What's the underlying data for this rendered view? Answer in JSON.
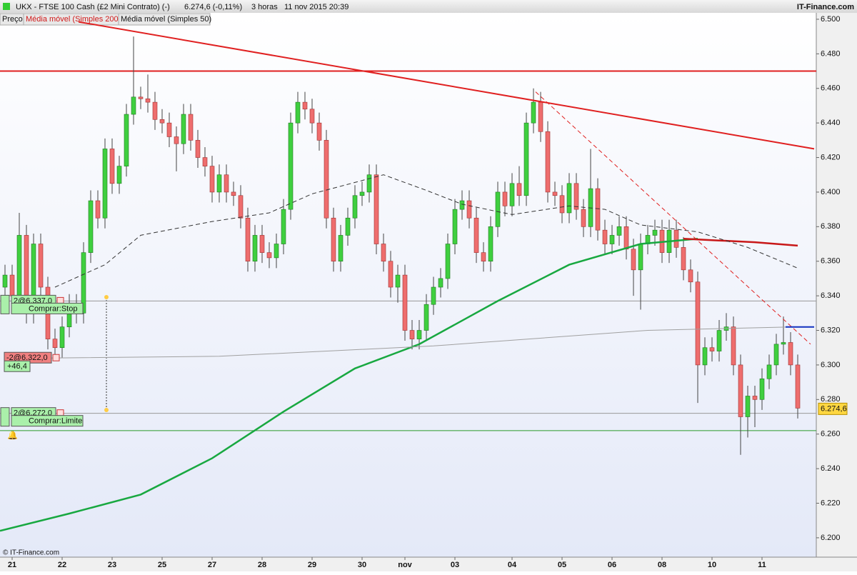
{
  "header": {
    "title": "UKX - FTSE 100 Cash (£2 Mini Contrato) (-)",
    "quote": "6.274,6 (-0,11%)",
    "period": "3 horas",
    "datetime": "11 nov 2015 20:39",
    "brand": "IT-Finance.com",
    "tabs": [
      "Preço",
      "Média móvel (Simples 200)",
      "Média móvel (Simples 50)"
    ],
    "copyright": "© IT-Finance.com"
  },
  "chart_data": {
    "type": "candlestick",
    "categories": [
      null,
      "21",
      null,
      null,
      null,
      null,
      null,
      null,
      "22",
      null,
      null,
      null,
      null,
      null,
      null,
      "23",
      null,
      null,
      null,
      null,
      null,
      null,
      "25",
      null,
      null,
      null,
      null,
      null,
      null,
      "27",
      null,
      null,
      null,
      null,
      null,
      null,
      "28",
      null,
      null,
      null,
      null,
      null,
      null,
      "29",
      null,
      null,
      null,
      null,
      null,
      null,
      "30",
      null,
      null,
      null,
      null,
      null,
      "nov",
      null,
      null,
      null,
      null,
      null,
      null,
      "03",
      null,
      null,
      null,
      null,
      null,
      null,
      null,
      "04",
      null,
      null,
      null,
      null,
      null,
      null,
      "05",
      null,
      null,
      null,
      null,
      null,
      null,
      "06",
      null,
      null,
      null,
      null,
      null,
      null,
      "08",
      null,
      null,
      null,
      null,
      null,
      null,
      "10",
      null,
      null,
      null,
      null,
      null,
      null,
      "11",
      null,
      null,
      null,
      null,
      null
    ],
    "open": [
      6.345,
      6.352,
      6.34,
      6.375,
      6.33,
      6.37,
      6.345,
      6.315,
      6.31,
      6.322,
      6.335,
      6.33,
      6.365,
      6.395,
      6.385,
      6.425,
      6.405,
      6.415,
      6.445,
      6.455,
      6.454,
      6.452,
      6.442,
      6.44,
      6.432,
      6.428,
      6.445,
      6.43,
      6.42,
      6.415,
      6.4,
      6.41,
      6.4,
      6.398,
      6.385,
      6.36,
      6.375,
      6.365,
      6.362,
      6.37,
      6.39,
      6.44,
      6.452,
      6.448,
      6.44,
      6.43,
      6.385,
      6.36,
      6.375,
      6.385,
      6.398,
      6.4,
      6.41,
      6.37,
      6.36,
      6.345,
      6.352,
      6.32,
      6.315,
      6.32,
      6.335,
      6.345,
      6.35,
      6.37,
      6.39,
      6.395,
      6.385,
      6.365,
      6.36,
      6.38,
      6.4,
      6.392,
      6.405,
      6.398,
      6.44,
      6.452,
      6.435,
      6.4,
      6.398,
      6.388,
      6.405,
      6.39,
      6.38,
      6.402,
      6.378,
      6.37,
      6.375,
      6.38,
      6.367,
      6.355,
      6.37,
      6.375,
      6.378,
      6.365,
      6.378,
      6.368,
      6.355,
      6.348,
      6.3,
      6.31,
      6.308,
      6.32,
      6.322,
      6.3,
      6.27,
      6.282,
      6.28,
      6.292,
      6.3,
      6.312,
      6.313,
      6.3
    ],
    "high": [
      6.358,
      6.358,
      6.388,
      6.381,
      6.376,
      6.376,
      6.351,
      6.321,
      6.328,
      6.341,
      6.341,
      6.371,
      6.401,
      6.401,
      6.431,
      6.431,
      6.421,
      6.451,
      6.49,
      6.461,
      6.468,
      6.458,
      6.448,
      6.446,
      6.438,
      6.451,
      6.451,
      6.436,
      6.426,
      6.421,
      6.416,
      6.416,
      6.406,
      6.404,
      6.391,
      6.381,
      6.381,
      6.371,
      6.376,
      6.396,
      6.446,
      6.458,
      6.458,
      6.454,
      6.446,
      6.436,
      6.391,
      6.381,
      6.391,
      6.404,
      6.406,
      6.416,
      6.416,
      6.376,
      6.366,
      6.358,
      6.358,
      6.326,
      6.326,
      6.341,
      6.351,
      6.356,
      6.376,
      6.396,
      6.401,
      6.401,
      6.391,
      6.371,
      6.386,
      6.406,
      6.406,
      6.411,
      6.415,
      6.446,
      6.46,
      6.458,
      6.441,
      6.406,
      6.404,
      6.411,
      6.411,
      6.396,
      6.425,
      6.408,
      6.384,
      6.381,
      6.386,
      6.386,
      6.373,
      6.376,
      6.381,
      6.384,
      6.384,
      6.384,
      6.384,
      6.374,
      6.361,
      6.354,
      6.316,
      6.316,
      6.326,
      6.33,
      6.328,
      6.306,
      6.288,
      6.288,
      6.298,
      6.306,
      6.318,
      6.328,
      6.319,
      6.306
    ],
    "low": [
      6.339,
      6.334,
      6.334,
      6.324,
      6.324,
      6.339,
      6.309,
      6.304,
      6.304,
      6.316,
      6.324,
      6.324,
      6.359,
      6.379,
      6.379,
      6.399,
      6.399,
      6.409,
      6.439,
      6.448,
      6.446,
      6.436,
      6.434,
      6.426,
      6.412,
      6.422,
      6.424,
      6.414,
      6.409,
      6.394,
      6.394,
      6.394,
      6.392,
      6.379,
      6.354,
      6.354,
      6.359,
      6.356,
      6.356,
      6.364,
      6.384,
      6.434,
      6.442,
      6.434,
      6.424,
      6.379,
      6.354,
      6.354,
      6.369,
      6.379,
      6.392,
      6.394,
      6.364,
      6.354,
      6.339,
      6.336,
      6.314,
      6.309,
      6.309,
      6.314,
      6.329,
      6.339,
      6.344,
      6.364,
      6.384,
      6.379,
      6.359,
      6.354,
      6.354,
      6.374,
      6.386,
      6.386,
      6.392,
      6.392,
      6.434,
      6.429,
      6.394,
      6.392,
      6.382,
      6.382,
      6.384,
      6.374,
      6.374,
      6.372,
      6.364,
      6.364,
      6.369,
      6.361,
      6.34,
      6.332,
      6.364,
      6.369,
      6.359,
      6.359,
      6.362,
      6.349,
      6.342,
      6.278,
      6.294,
      6.302,
      6.302,
      6.314,
      6.294,
      6.248,
      6.258,
      6.264,
      6.274,
      6.286,
      6.294,
      6.306,
      6.294,
      6.269
    ],
    "close": [
      6.352,
      6.34,
      6.375,
      6.33,
      6.37,
      6.345,
      6.315,
      6.31,
      6.322,
      6.335,
      6.33,
      6.365,
      6.395,
      6.385,
      6.425,
      6.405,
      6.415,
      6.445,
      6.455,
      6.454,
      6.452,
      6.442,
      6.44,
      6.432,
      6.428,
      6.445,
      6.43,
      6.42,
      6.415,
      6.4,
      6.41,
      6.4,
      6.398,
      6.385,
      6.36,
      6.375,
      6.365,
      6.362,
      6.37,
      6.39,
      6.44,
      6.452,
      6.448,
      6.44,
      6.43,
      6.385,
      6.36,
      6.375,
      6.385,
      6.398,
      6.4,
      6.41,
      6.37,
      6.36,
      6.345,
      6.352,
      6.32,
      6.315,
      6.32,
      6.335,
      6.345,
      6.35,
      6.37,
      6.39,
      6.395,
      6.385,
      6.365,
      6.36,
      6.38,
      6.4,
      6.392,
      6.405,
      6.398,
      6.44,
      6.452,
      6.435,
      6.4,
      6.398,
      6.388,
      6.405,
      6.39,
      6.38,
      6.402,
      6.378,
      6.37,
      6.375,
      6.38,
      6.367,
      6.355,
      6.37,
      6.375,
      6.378,
      6.365,
      6.378,
      6.368,
      6.355,
      6.348,
      6.3,
      6.31,
      6.308,
      6.32,
      6.322,
      6.3,
      6.27,
      6.282,
      6.28,
      6.292,
      6.3,
      6.312,
      6.313,
      6.3,
      6.275
    ],
    "up_color": "#3fcf3f",
    "down_color": "#ee6d6d",
    "ylim": [
      6.1888,
      6.5037
    ],
    "yticks": [
      {
        "value": 6.2,
        "label": "6.200"
      },
      {
        "value": 6.22,
        "label": "6.220"
      },
      {
        "value": 6.24,
        "label": "6.240"
      },
      {
        "value": 6.26,
        "label": "6.260"
      },
      {
        "value": 6.28,
        "label": "6.280"
      },
      {
        "value": 6.3,
        "label": "6.300"
      },
      {
        "value": 6.32,
        "label": "6.320"
      },
      {
        "value": 6.34,
        "label": "6.340"
      },
      {
        "value": 6.36,
        "label": "6.360"
      },
      {
        "value": 6.38,
        "label": "6.380"
      },
      {
        "value": 6.4,
        "label": "6.400"
      },
      {
        "value": 6.42,
        "label": "6.420"
      },
      {
        "value": 6.44,
        "label": "6.440"
      },
      {
        "value": 6.46,
        "label": "6.460"
      },
      {
        "value": 6.48,
        "label": "6.480"
      },
      {
        "value": 6.5,
        "label": "6.500"
      }
    ],
    "overlays": [
      {
        "color": "#18a840",
        "width": 2.5,
        "x": [
          -0.7,
          9,
          19,
          29,
          39,
          49,
          58,
          69,
          79,
          89,
          97
        ],
        "values": [
          6.204,
          6.214,
          6.225,
          6.246,
          6.273,
          6.298,
          6.312,
          6.337,
          6.358,
          6.37,
          6.373
        ]
      },
      {
        "color": "#c81818",
        "width": 2.5,
        "x": [
          95,
          100,
          105,
          111
        ],
        "values": [
          6.373,
          6.372,
          6.371,
          6.369
        ]
      },
      {
        "color": "#333333",
        "width": 1,
        "dash": true,
        "x": [
          7,
          14,
          19,
          29,
          37,
          43,
          53,
          59,
          64,
          71,
          79,
          84,
          89,
          97,
          104,
          111
        ],
        "values": [
          6.345,
          6.358,
          6.375,
          6.383,
          6.388,
          6.399,
          6.41,
          6.401,
          6.393,
          6.387,
          6.392,
          6.39,
          6.381,
          6.377,
          6.368,
          6.356
        ]
      },
      {
        "color": "#a0a0a0",
        "width": 1,
        "x": [
          6,
          30,
          60,
          90,
          110
        ],
        "values": [
          6.304,
          6.305,
          6.311,
          6.32,
          6.322
        ]
      },
      {
        "color": "#e02020",
        "width": 2,
        "x": [
          10.3,
          113.3
        ],
        "values": [
          6.4985,
          6.425
        ]
      },
      {
        "color": "#e02020",
        "width": 1,
        "dash": true,
        "x": [
          74.3,
          112.8
        ],
        "values": [
          6.458,
          6.312
        ]
      },
      {
        "color": "#1030c0",
        "width": 2,
        "x": [
          109.3,
          113.3
        ],
        "values": [
          6.322,
          6.322
        ]
      }
    ],
    "hlines": [
      {
        "value": 6.47,
        "color": "#e02020",
        "width": 2
      },
      {
        "value": 6.262,
        "color": "#2a9a2a",
        "width": 1
      },
      {
        "value": 6.337,
        "color": "#999999",
        "width": 1
      },
      {
        "value": 6.272,
        "color": "#999999",
        "width": 1
      }
    ],
    "orders": [
      {
        "label": "2@6.337,0",
        "kind": "Comprar:Stop",
        "value": 6.337
      },
      {
        "label": "-2@6.322,0",
        "pnl": "+46,4",
        "value": 6.304
      },
      {
        "label": "2@6.272,0",
        "kind": "Comprar:Limite",
        "value": 6.272
      }
    ],
    "last_price": {
      "value": 6.2746,
      "label": "6.274,6"
    }
  }
}
